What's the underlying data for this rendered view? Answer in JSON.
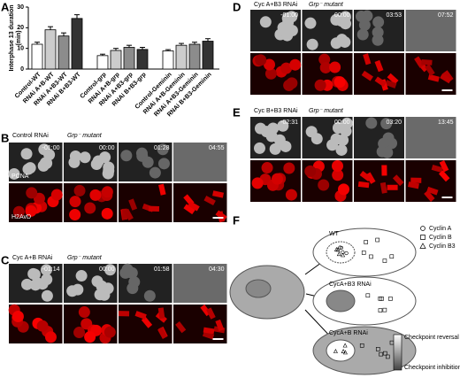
{
  "chart_data": {
    "type": "bar",
    "panel_letter": "A",
    "ylabel": [
      "Interphase 13 duration",
      "(min)"
    ],
    "categories": [
      "Control-WT",
      "RNAi A+B-WT",
      "RNAi A+B3-WT",
      "RNAi B+B3-WT",
      "Control-grp",
      "RNAi A+B-grp",
      "RNAi A+B3-grp",
      "RNAi B+B3-grp",
      "Control-Geminin",
      "RNAi A+B-Geminin",
      "RNAi A+B3-Geminin",
      "RNAi B+B3-Geminin"
    ],
    "values": [
      12,
      19,
      16,
      24.5,
      6.5,
      9,
      10.5,
      9.5,
      8.8,
      11.5,
      12,
      13.5
    ],
    "errors": [
      1,
      1.5,
      1.5,
      1.8,
      0.7,
      1,
      1,
      1,
      0.6,
      0.9,
      1,
      1.2
    ],
    "colors": [
      "#ffffff",
      "#cccccc",
      "#8c8c8c",
      "#333333",
      "#ffffff",
      "#cccccc",
      "#8c8c8c",
      "#333333",
      "#ffffff",
      "#cccccc",
      "#8c8c8c",
      "#333333"
    ],
    "ylim": [
      0,
      30
    ],
    "yticks": [
      0,
      10,
      20,
      30
    ]
  },
  "panels": [
    {
      "letter": "B",
      "title": "Control RNAi",
      "genotype": "Grp⁻ mutant",
      "times": [
        "-01:00",
        "00:00",
        "01:28",
        "04:55"
      ],
      "row_labels": [
        "PCNA",
        "H2AvD"
      ]
    },
    {
      "letter": "C",
      "title": "Cyc A+B RNAi",
      "genotype": "Grp⁻ mutant",
      "times": [
        "-01:14",
        "00:00",
        "01:58",
        "04:30"
      ]
    },
    {
      "letter": "D",
      "title": "Cyc A+B3 RNAi",
      "genotype": "Grp⁻ mutant",
      "times": [
        "-01:00",
        "00:00",
        "03:53",
        "07:52"
      ]
    },
    {
      "letter": "E",
      "title": "Cyc B+B3 RNAi",
      "genotype": "Grp⁻ mutant",
      "times": [
        "-02:31",
        "00:00",
        "03:20",
        "13:45"
      ]
    }
  ],
  "diagram": {
    "letter": "F",
    "cells": [
      "WT",
      "CycA+B3 RNAi",
      "CycA+B RNAi"
    ],
    "legend": [
      "Cyclin A",
      "Cyclin B",
      "Cyclin B3"
    ],
    "gradient": [
      "Checkpoint reversal",
      "Checkpoint inhibition"
    ]
  }
}
